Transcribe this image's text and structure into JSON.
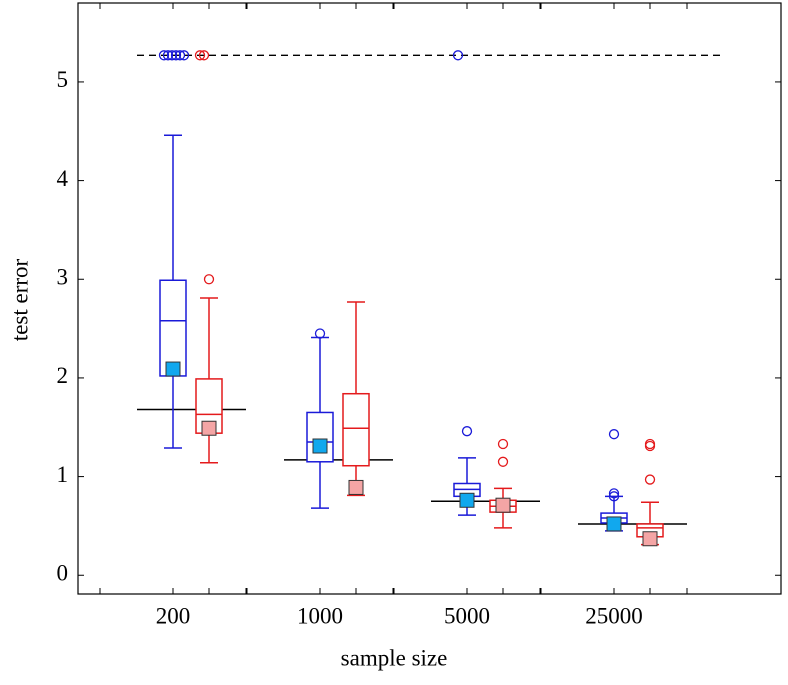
{
  "chart_data": {
    "type": "box",
    "x_label": "sample size",
    "y_label": "test error",
    "categories": [
      "200",
      "1000",
      "5000",
      "25000"
    ],
    "ylim": [
      -0.19,
      5.8
    ],
    "yticks": [
      0,
      1,
      2,
      3,
      4,
      5
    ],
    "dashed_line": 5.27,
    "reference_lines": [
      1.68,
      1.17,
      0.75,
      0.52
    ],
    "series": [
      {
        "color": "#1a1ad8",
        "mean_color": "#11a8ee",
        "boxes": [
          {
            "min": 1.29,
            "q1": 2.02,
            "median": 2.58,
            "q3": 2.99,
            "max": 4.46,
            "mean": 2.09,
            "outliers": [
              5.27,
              5.27,
              5.27,
              5.27,
              5.27,
              5.27
            ]
          },
          {
            "min": 0.68,
            "q1": 1.15,
            "median": 1.35,
            "q3": 1.65,
            "max": 2.41,
            "mean": 1.31,
            "outliers": [
              2.45
            ]
          },
          {
            "min": 0.61,
            "q1": 0.8,
            "median": 0.87,
            "q3": 0.93,
            "max": 1.19,
            "mean": 0.76,
            "outliers": [
              1.46,
              5.27
            ]
          },
          {
            "min": 0.45,
            "q1": 0.53,
            "median": 0.58,
            "q3": 0.63,
            "max": 0.8,
            "mean": 0.52,
            "outliers": [
              1.43,
              0.83,
              0.8
            ]
          }
        ]
      },
      {
        "color": "#e41a1c",
        "mean_color": "#f4a5a5",
        "boxes": [
          {
            "min": 1.14,
            "q1": 1.44,
            "median": 1.63,
            "q3": 1.99,
            "max": 2.81,
            "mean": 1.49,
            "outliers": [
              3.0,
              5.27,
              5.27
            ]
          },
          {
            "min": 0.81,
            "q1": 1.11,
            "median": 1.49,
            "q3": 1.84,
            "max": 2.77,
            "mean": 0.89,
            "outliers": []
          },
          {
            "min": 0.48,
            "q1": 0.64,
            "median": 0.7,
            "q3": 0.76,
            "max": 0.88,
            "mean": 0.71,
            "outliers": [
              1.33,
              1.15
            ]
          },
          {
            "min": 0.31,
            "q1": 0.39,
            "median": 0.48,
            "q3": 0.52,
            "max": 0.74,
            "mean": 0.37,
            "outliers": [
              1.33,
              1.31,
              0.97
            ]
          }
        ]
      }
    ]
  }
}
